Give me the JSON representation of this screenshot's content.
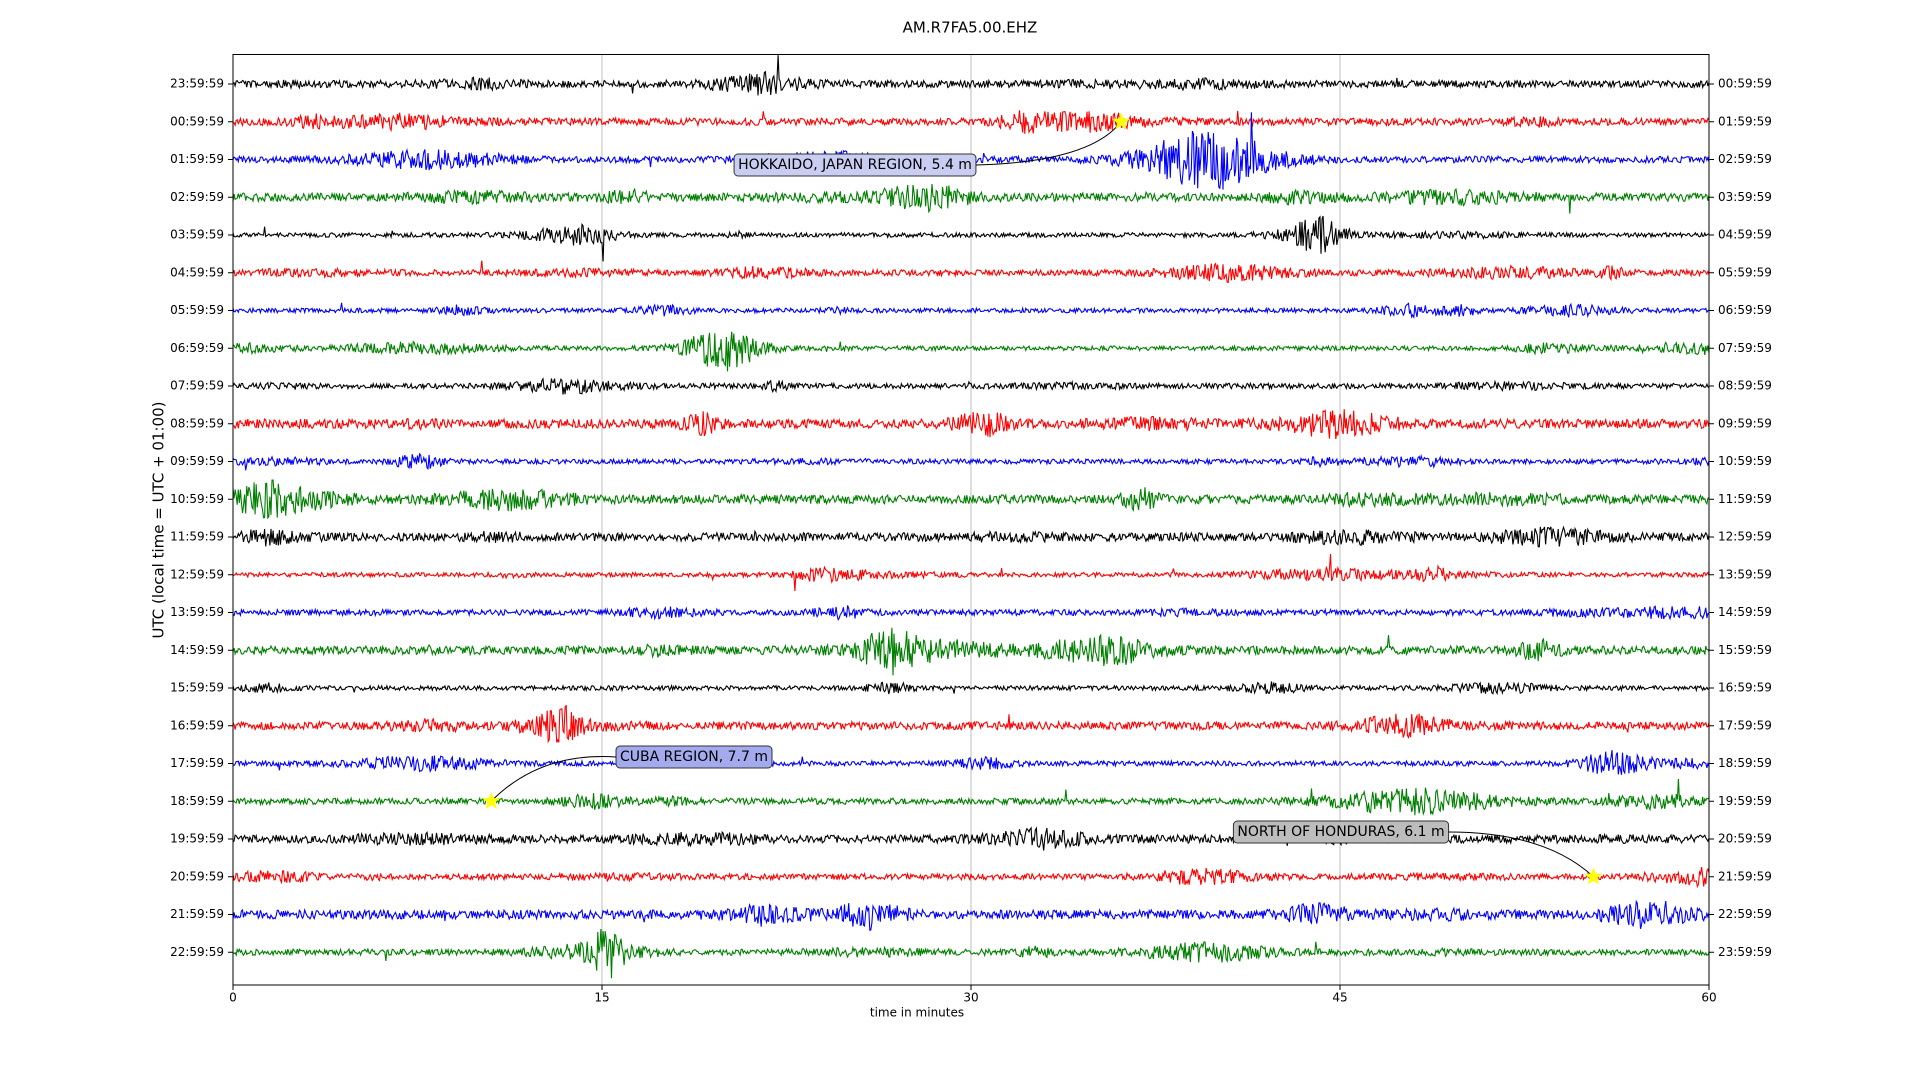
{
  "chart_data": {
    "type": "helicorder",
    "title": "AM.R7FA5.00.EHZ",
    "x_label": "time in minutes",
    "y_label": "UTC (local time = UTC + 01:00)",
    "xlim": [
      0,
      60
    ],
    "xticks": [
      0,
      15,
      30,
      45,
      60
    ],
    "grid": true,
    "rows": [
      {
        "left": "23:59:59",
        "right": "00:59:59",
        "color": "#000000"
      },
      {
        "left": "00:59:59",
        "right": "01:59:59",
        "color": "#ff0000"
      },
      {
        "left": "01:59:59",
        "right": "02:59:59",
        "color": "#0000ff"
      },
      {
        "left": "02:59:59",
        "right": "03:59:59",
        "color": "#008000"
      },
      {
        "left": "03:59:59",
        "right": "04:59:59",
        "color": "#000000"
      },
      {
        "left": "04:59:59",
        "right": "05:59:59",
        "color": "#ff0000"
      },
      {
        "left": "05:59:59",
        "right": "06:59:59",
        "color": "#0000ff"
      },
      {
        "left": "06:59:59",
        "right": "07:59:59",
        "color": "#008000"
      },
      {
        "left": "07:59:59",
        "right": "08:59:59",
        "color": "#000000"
      },
      {
        "left": "08:59:59",
        "right": "09:59:59",
        "color": "#ff0000"
      },
      {
        "left": "09:59:59",
        "right": "10:59:59",
        "color": "#0000ff"
      },
      {
        "left": "10:59:59",
        "right": "11:59:59",
        "color": "#008000"
      },
      {
        "left": "11:59:59",
        "right": "12:59:59",
        "color": "#000000"
      },
      {
        "left": "12:59:59",
        "right": "13:59:59",
        "color": "#ff0000"
      },
      {
        "left": "13:59:59",
        "right": "14:59:59",
        "color": "#0000ff"
      },
      {
        "left": "14:59:59",
        "right": "15:59:59",
        "color": "#008000"
      },
      {
        "left": "15:59:59",
        "right": "16:59:59",
        "color": "#000000"
      },
      {
        "left": "16:59:59",
        "right": "17:59:59",
        "color": "#ff0000"
      },
      {
        "left": "17:59:59",
        "right": "18:59:59",
        "color": "#0000ff"
      },
      {
        "left": "18:59:59",
        "right": "19:59:59",
        "color": "#008000"
      },
      {
        "left": "19:59:59",
        "right": "20:59:59",
        "color": "#000000"
      },
      {
        "left": "20:59:59",
        "right": "21:59:59",
        "color": "#ff0000"
      },
      {
        "left": "21:59:59",
        "right": "22:59:59",
        "color": "#0000ff"
      },
      {
        "left": "22:59:59",
        "right": "23:59:59",
        "color": "#008000"
      }
    ],
    "events": [
      {
        "label": "HOKKAIDO, JAPAN REGION, 5.4 m",
        "row": 1,
        "x": 36.1,
        "color": "#c9cdf2"
      },
      {
        "label": "CUBA REGION, 7.7 m",
        "row": 19,
        "x": 10.5,
        "color": "#a3abee"
      },
      {
        "label": "NORTH OF HONDURAS, 6.1 m",
        "row": 21,
        "x": 55.3,
        "color": "#bdbdbd"
      }
    ]
  }
}
